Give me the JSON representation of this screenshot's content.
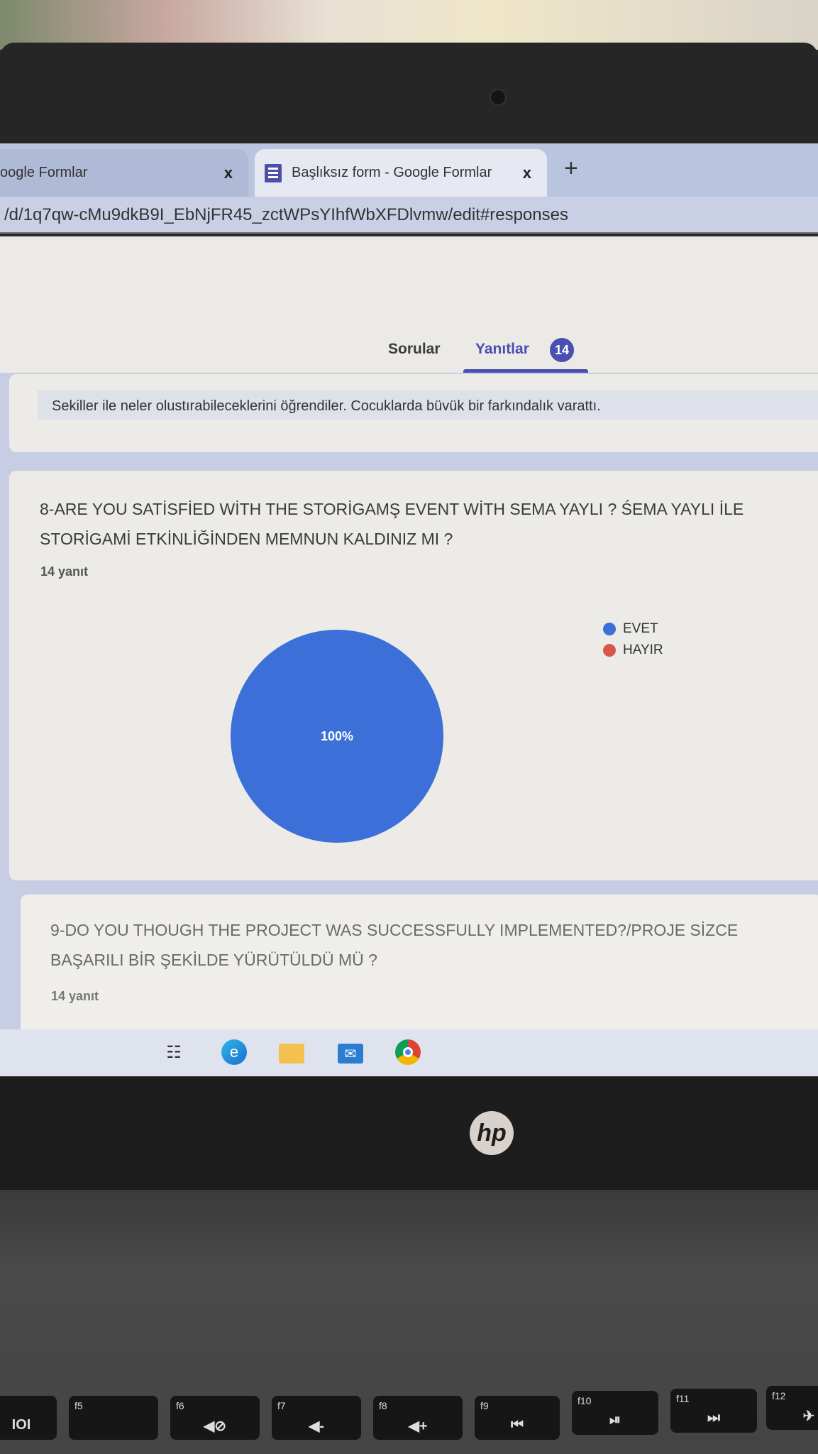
{
  "browser": {
    "tabs": [
      {
        "label": "oogle Formlar",
        "close": "x"
      },
      {
        "label": "Başlıksız form - Google Formlar",
        "close": "x"
      }
    ],
    "new_tab": "+",
    "url": "/d/1q7qw-cMu9dkB9I_EbNjFR45_zctWPsYIhfWbXFDlvmw/edit#responses"
  },
  "form_nav": {
    "tabs": [
      {
        "label": "Sorular"
      },
      {
        "label": "Yanıtlar"
      }
    ],
    "response_badge": "14",
    "active": "Yanıtlar",
    "accent": "#4a4fb0"
  },
  "previous_answer": "Sekiller ile neler olustırabileceklerini öğrendiler. Cocuklarda büvük bir farkındalık varattı.",
  "questions": [
    {
      "title_lines": [
        "8-ARE YOU SATİSFİED WİTH THE STORİGAMŞ EVENT WİTH SEMA YAYLI ? ŚEMA YAYLI İLE",
        "STORİGAMİ ETKİNLİĞİNDEN MEMNUN KALDINIZ MI ?"
      ],
      "count": "14 yanıt"
    },
    {
      "title_lines": [
        "9-DO YOU THOUGH THE PROJECT WAS SUCCESSFULLY IMPLEMENTED?/PROJE SİZCE",
        "BAŞARILI BİR ŞEKİLDE YÜRÜTÜLDÜ MÜ ?"
      ],
      "count": "14 yanıt"
    }
  ],
  "chart_data": {
    "type": "pie",
    "categories": [
      "EVET",
      "HAYIR"
    ],
    "values": [
      100,
      0
    ],
    "colors": [
      "#3c6fd8",
      "#d9574a"
    ],
    "slice_labels": [
      "100%"
    ],
    "legend_position": "right"
  },
  "taskbar": {
    "icons": [
      "task-view-icon",
      "edge-icon",
      "file-explorer-icon",
      "mail-icon",
      "chrome-icon"
    ]
  },
  "laptop": {
    "brand_logo": "hp",
    "keys": [
      "f5",
      "f6",
      "f7",
      "f8",
      "f9",
      "f10",
      "f11",
      "f12"
    ]
  }
}
